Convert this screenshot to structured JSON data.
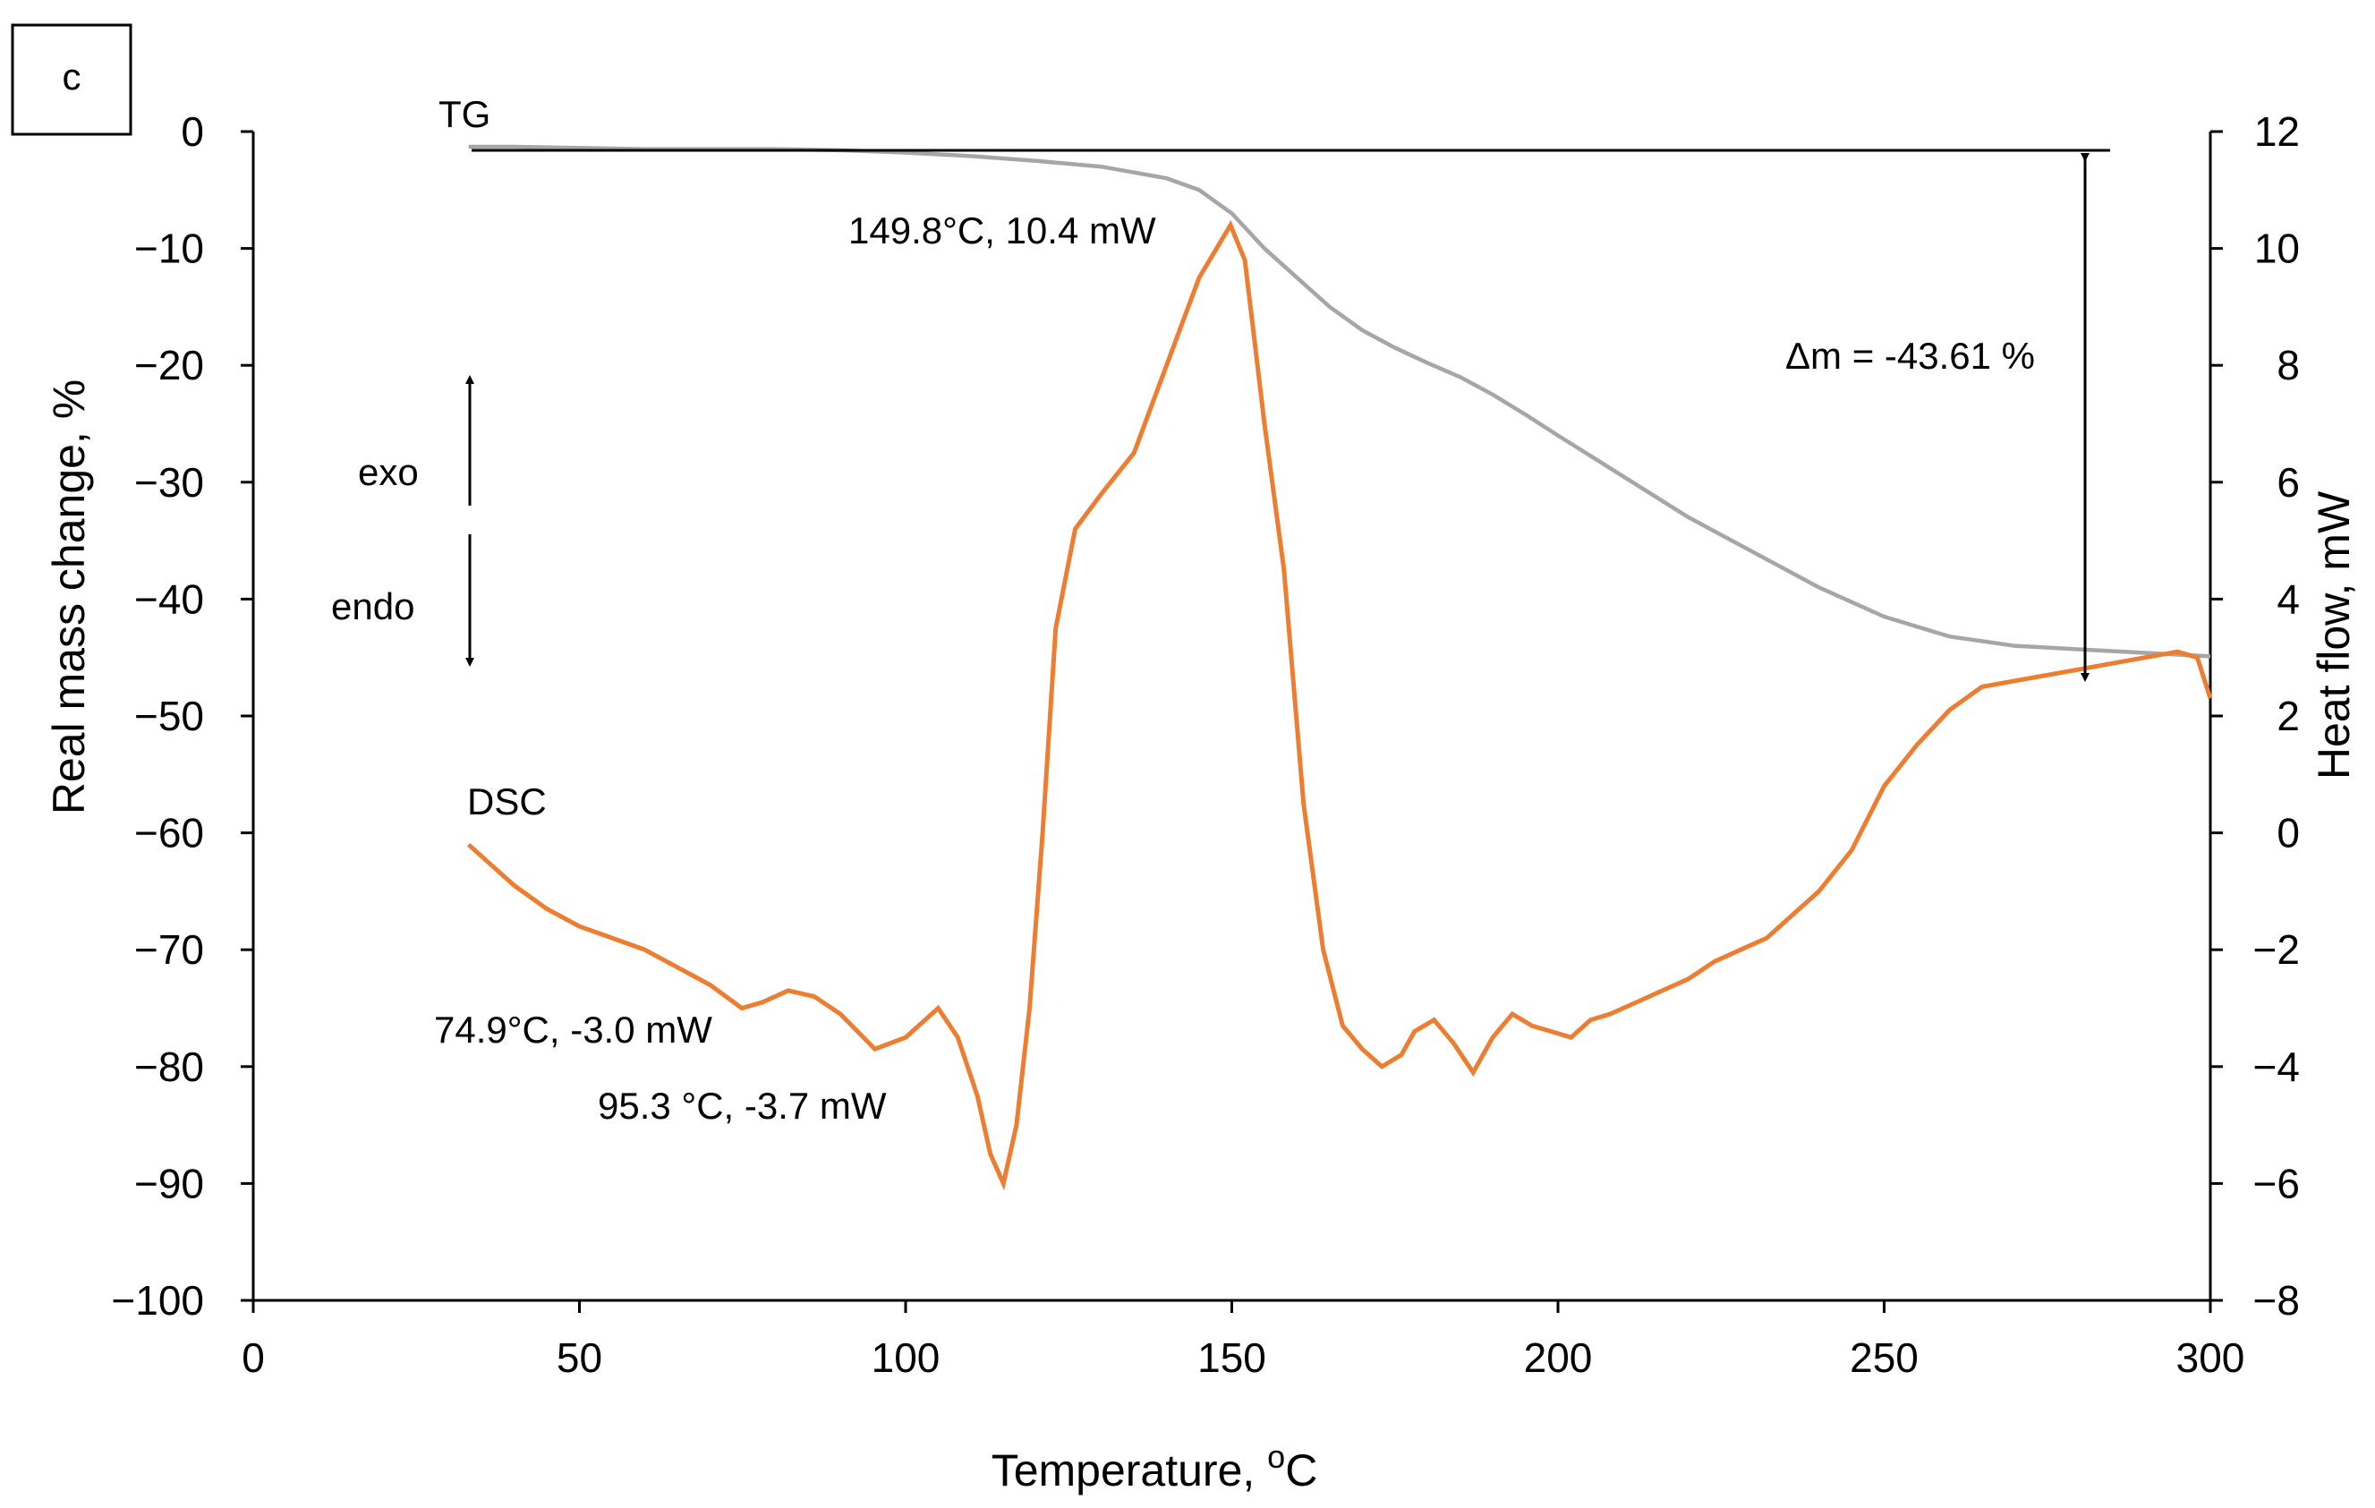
{
  "panel_label": "c",
  "chart_data": {
    "type": "line",
    "xlabel": "Temperature, ",
    "xlabel_unit": "oC",
    "ylabel_left": "Real mass change, %",
    "ylabel_right": "Heat flow, mW",
    "xlim": [
      0,
      300
    ],
    "ylim_left": [
      -100,
      0
    ],
    "ylim_right": [
      -8,
      12
    ],
    "x_ticks": [
      "0",
      "50",
      "100",
      "150",
      "200",
      "250",
      "300"
    ],
    "y_left_ticks": [
      "0",
      "−10",
      "−20",
      "−30",
      "−40",
      "−50",
      "−60",
      "−70",
      "−80",
      "−90",
      "−100"
    ],
    "y_right_ticks": [
      "12",
      "10",
      "8",
      "6",
      "4",
      "2",
      "0",
      "−2",
      "−4",
      "−6",
      "−8"
    ],
    "series": [
      {
        "name": "TG",
        "axis": "left",
        "color": "#a6a6a6",
        "x": [
          33,
          40,
          50,
          60,
          70,
          80,
          90,
          100,
          110,
          120,
          130,
          140,
          145,
          150,
          155,
          160,
          165,
          170,
          175,
          180,
          185,
          190,
          195,
          200,
          210,
          220,
          230,
          240,
          250,
          260,
          270,
          280,
          290,
          300
        ],
        "y": [
          -1.3,
          -1.3,
          -1.4,
          -1.5,
          -1.5,
          -1.5,
          -1.6,
          -1.8,
          -2.1,
          -2.5,
          -3.0,
          -4.0,
          -5.0,
          -7.0,
          -10.0,
          -12.5,
          -15.0,
          -17.0,
          -18.5,
          -19.8,
          -21.0,
          -22.5,
          -24.2,
          -26.0,
          -29.5,
          -33.0,
          -36.0,
          -39.0,
          -41.5,
          -43.2,
          -44.0,
          -44.3,
          -44.6,
          -44.9
        ]
      },
      {
        "name": "DSC",
        "axis": "right",
        "color": "#ed7d31",
        "x": [
          33,
          36,
          40,
          45,
          50,
          55,
          60,
          65,
          70,
          74.9,
          78,
          82,
          86,
          90,
          95.3,
          100,
          105,
          108,
          111,
          113,
          115,
          117,
          119,
          121,
          123,
          126,
          130,
          135,
          140,
          145,
          149.8,
          152,
          155,
          158,
          161,
          164,
          167,
          170,
          173,
          176,
          178,
          181,
          184,
          187,
          190,
          193,
          196,
          199,
          202,
          205,
          208,
          212,
          216,
          220,
          224,
          228,
          232,
          236,
          240,
          245,
          250,
          255,
          260,
          265,
          270,
          275,
          280,
          285,
          290,
          295,
          298,
          300
        ],
        "y": [
          -0.2,
          -0.5,
          -0.9,
          -1.3,
          -1.6,
          -1.8,
          -2.0,
          -2.3,
          -2.6,
          -3.0,
          -2.9,
          -2.7,
          -2.8,
          -3.1,
          -3.7,
          -3.5,
          -3.0,
          -3.5,
          -4.5,
          -5.5,
          -6.0,
          -5.0,
          -3.0,
          0.0,
          3.5,
          5.2,
          5.8,
          6.5,
          8.0,
          9.5,
          10.4,
          9.8,
          7.0,
          4.5,
          0.5,
          -2.0,
          -3.3,
          -3.7,
          -4.0,
          -3.8,
          -3.4,
          -3.2,
          -3.6,
          -4.1,
          -3.5,
          -3.1,
          -3.3,
          -3.4,
          -3.5,
          -3.2,
          -3.1,
          -2.9,
          -2.7,
          -2.5,
          -2.2,
          -2.0,
          -1.8,
          -1.4,
          -1.0,
          -0.3,
          0.8,
          1.5,
          2.1,
          2.5,
          2.6,
          2.7,
          2.8,
          2.9,
          3.0,
          3.1,
          3.0,
          2.3
        ]
      }
    ],
    "annotations": {
      "tg_label": "TG",
      "dsc_label": "DSC",
      "peak_exo": "149.8°C, 10.4 mW",
      "peak_endo1": "74.9°C, -3.0 mW",
      "peak_endo2": "95.3 °C, -3.7 mW",
      "exo": "exo",
      "endo": "endo",
      "delta_m": "Δm = -43.61 %"
    }
  }
}
